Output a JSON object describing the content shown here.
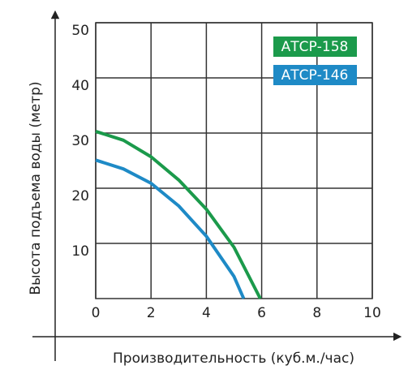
{
  "chart_data": {
    "type": "line",
    "xlabel": "Производительность (куб.м./час)",
    "ylabel": "Высота подъема воды (метр)",
    "xlim": [
      0,
      10
    ],
    "xticks": [
      0,
      2,
      4,
      6,
      8,
      10
    ],
    "ylim": [
      0,
      50
    ],
    "yticks": [
      10,
      20,
      30,
      40,
      50
    ],
    "grid": true,
    "legend": "upper right",
    "series": [
      {
        "name": "АТСР-158",
        "color": "#1b9a4b",
        "x": [
          0,
          1,
          2,
          3,
          4,
          5,
          5.95
        ],
        "values": [
          30.3,
          28.7,
          25.7,
          21.5,
          16.2,
          9.3,
          0
        ]
      },
      {
        "name": "АТСР-146",
        "color": "#1e8ac6",
        "x": [
          0,
          1,
          2,
          3,
          4,
          5,
          5.35
        ],
        "values": [
          25.1,
          23.5,
          20.9,
          16.8,
          11.3,
          4,
          0
        ]
      }
    ]
  }
}
